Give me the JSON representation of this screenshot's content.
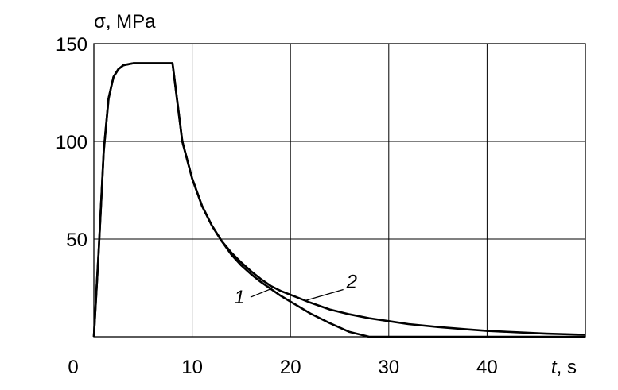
{
  "chart_data": {
    "type": "line",
    "ylabel": "σ, MPa",
    "xlabel_var": "t",
    "xlabel_unit": ", s",
    "xlim": [
      0,
      50
    ],
    "ylim": [
      0,
      150
    ],
    "x_ticks": [
      0,
      10,
      20,
      30,
      40
    ],
    "x_tick_labels": [
      "0",
      "10",
      "20",
      "30",
      "40"
    ],
    "y_ticks": [
      50,
      100,
      150
    ],
    "y_tick_labels": [
      "50",
      "100",
      "150"
    ],
    "grid": true,
    "series": [
      {
        "name": "1",
        "x": [
          0,
          0.5,
          1,
          1.5,
          2,
          2.5,
          3,
          3.5,
          4,
          5,
          6,
          7,
          8,
          9,
          10,
          11,
          12,
          13,
          14,
          15,
          16,
          17,
          18,
          19,
          20,
          22,
          24,
          26,
          28,
          50
        ],
        "values": [
          0,
          45,
          95,
          122,
          133,
          137,
          139,
          139.5,
          140,
          140,
          140,
          140,
          140,
          100,
          81,
          67,
          57,
          49,
          42,
          36.5,
          32,
          28,
          24.5,
          21,
          18,
          12,
          7,
          2.5,
          0,
          0
        ]
      },
      {
        "name": "2",
        "x": [
          0,
          0.5,
          1,
          1.5,
          2,
          2.5,
          3,
          3.5,
          4,
          5,
          6,
          7,
          8,
          9,
          10,
          11,
          12,
          13,
          14,
          15,
          16,
          17,
          18,
          19,
          20,
          22,
          24,
          26,
          28,
          30,
          32,
          35,
          38,
          40,
          43,
          46,
          50
        ],
        "values": [
          0,
          45,
          95,
          122,
          133,
          137,
          139,
          139.5,
          140,
          140,
          140,
          140,
          140,
          100,
          81,
          67,
          57,
          49,
          43,
          38,
          33.5,
          29.5,
          26,
          23.5,
          21.5,
          17.5,
          14,
          11.5,
          9.5,
          8,
          6.5,
          5,
          3.8,
          3,
          2.3,
          1.6,
          1
        ]
      }
    ],
    "annotations": [
      {
        "text": "1",
        "x": 14.8,
        "y": 17
      },
      {
        "text": "2",
        "x": 25.7,
        "y": 25
      }
    ]
  }
}
